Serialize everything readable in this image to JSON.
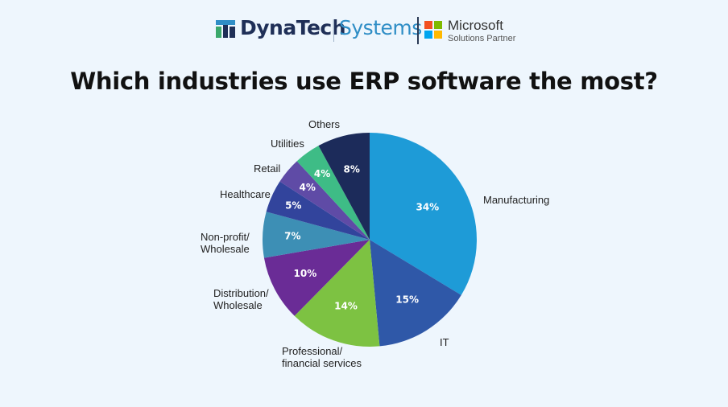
{
  "header": {
    "brand_part1": "DynaTech",
    "brand_part2": "Systems",
    "partner_name": "Microsoft",
    "partner_sub": "Solutions Partner"
  },
  "colors": {
    "background": "#eef6fd",
    "brand_dark": "#1f2f57",
    "brand_light": "#2f8ec6"
  },
  "chart_data": {
    "type": "pie",
    "title": "Which industries use ERP software the most?",
    "slices": [
      {
        "label": "Manufacturing",
        "value": 34,
        "value_label": "34%",
        "color": "#1e9bd7"
      },
      {
        "label": "IT",
        "value": 15,
        "value_label": "15%",
        "color": "#2f58a8"
      },
      {
        "label": "Professional/\nfinancial services",
        "value": 14,
        "value_label": "14%",
        "color": "#7dc242"
      },
      {
        "label": "Distribution/\nWholesale",
        "value": 10,
        "value_label": "10%",
        "color": "#6a2c96"
      },
      {
        "label": "Non-profit/\nWholesale",
        "value": 7,
        "value_label": "7%",
        "color": "#3d8fb5"
      },
      {
        "label": "Healthcare",
        "value": 5,
        "value_label": "5%",
        "color": "#32449c"
      },
      {
        "label": "Retail",
        "value": 4,
        "value_label": "4%",
        "color": "#5f4ba6"
      },
      {
        "label": "Utilities",
        "value": 4,
        "value_label": "4%",
        "color": "#3ebc86"
      },
      {
        "label": "Others",
        "value": 8,
        "value_label": "8%",
        "color": "#1c2b5a"
      }
    ]
  }
}
